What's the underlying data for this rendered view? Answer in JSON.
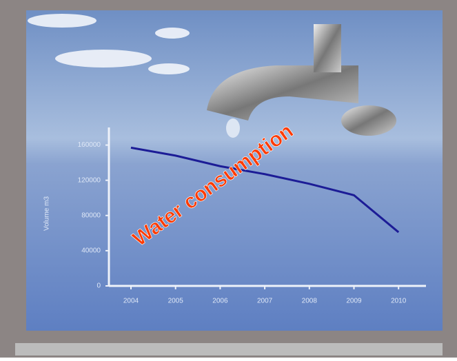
{
  "chart_data": {
    "type": "line",
    "title": "Water consumption",
    "y_label": "Volume m3",
    "categories": [
      "2004",
      "2005",
      "2006",
      "2007",
      "2008",
      "2009",
      "2010"
    ],
    "series": [
      {
        "name": "Water consumption",
        "color": "#1c1c96",
        "values": [
          157000,
          148000,
          136000,
          127000,
          116000,
          103000,
          61000
        ]
      }
    ],
    "ylim": [
      0,
      180000
    ],
    "yticks": [
      0,
      40000,
      80000,
      120000,
      160000
    ]
  }
}
